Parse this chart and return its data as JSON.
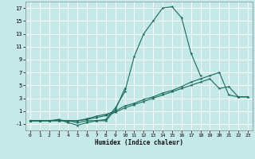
{
  "xlabel": "Humidex (Indice chaleur)",
  "xlim": [
    -0.5,
    23.5
  ],
  "ylim": [
    -2.0,
    18.0
  ],
  "yticks": [
    -1,
    1,
    3,
    5,
    7,
    9,
    11,
    13,
    15,
    17
  ],
  "xticks": [
    0,
    1,
    2,
    3,
    4,
    5,
    6,
    7,
    8,
    9,
    10,
    11,
    12,
    13,
    14,
    15,
    16,
    17,
    18,
    19,
    20,
    21,
    22,
    23
  ],
  "bg_color": "#c5e8e8",
  "grid_color": "#b0d8d8",
  "line_color": "#1a6b5a",
  "lines": [
    {
      "x": [
        0,
        1,
        2,
        3,
        4,
        5,
        6,
        7,
        8,
        9,
        10,
        11,
        12,
        13,
        14,
        15,
        16,
        17,
        18
      ],
      "y": [
        -0.5,
        -0.5,
        -0.5,
        -0.5,
        -0.5,
        -0.8,
        -0.5,
        -0.5,
        -0.3,
        1.5,
        4.0,
        9.5,
        13.0,
        15.0,
        17.0,
        17.2,
        15.5,
        10.0,
        6.5
      ]
    },
    {
      "x": [
        0,
        1,
        2,
        3,
        4,
        5,
        6,
        7,
        8,
        9,
        10
      ],
      "y": [
        -0.5,
        -0.5,
        -0.5,
        -0.3,
        -0.8,
        -1.2,
        -0.8,
        -0.5,
        -0.5,
        1.2,
        4.5
      ]
    },
    {
      "x": [
        0,
        1,
        2,
        3,
        4,
        5,
        6,
        7,
        8,
        9,
        10,
        11,
        12,
        13,
        14,
        15,
        16,
        17,
        18,
        19,
        20,
        21,
        22,
        23
      ],
      "y": [
        -0.5,
        -0.5,
        -0.5,
        -0.5,
        -0.5,
        -0.5,
        -0.3,
        0.0,
        0.3,
        0.8,
        1.5,
        2.0,
        2.5,
        3.0,
        3.5,
        4.0,
        4.5,
        5.0,
        5.5,
        6.0,
        4.5,
        4.8,
        3.2,
        3.2
      ]
    },
    {
      "x": [
        0,
        1,
        2,
        3,
        4,
        5,
        6,
        7,
        8,
        9,
        10,
        11,
        12,
        13,
        14,
        15,
        16,
        17,
        18,
        19,
        20,
        21,
        22,
        23
      ],
      "y": [
        -0.5,
        -0.5,
        -0.5,
        -0.4,
        -0.5,
        -0.5,
        -0.2,
        0.2,
        0.5,
        1.0,
        1.8,
        2.2,
        2.8,
        3.2,
        3.8,
        4.2,
        4.8,
        5.5,
        6.0,
        6.5,
        7.0,
        3.5,
        3.2,
        3.2
      ]
    }
  ]
}
